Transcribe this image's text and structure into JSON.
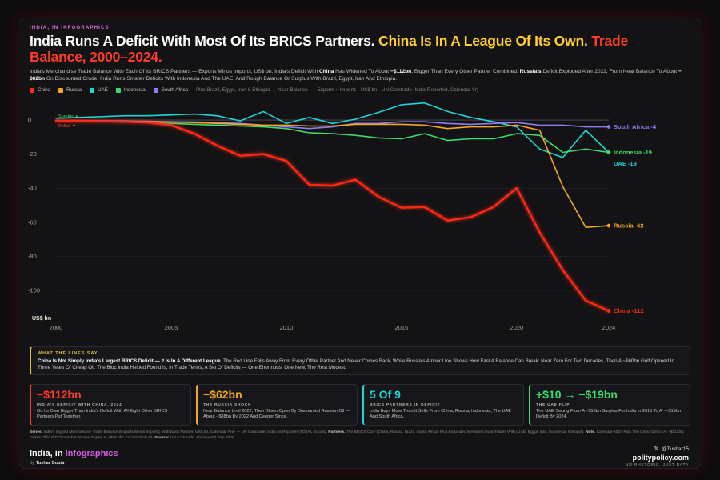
{
  "header": {
    "kicker": "INDIA, IN INFOGRAPHICS",
    "title_main": "India Runs A Deficit With Most Of Its BRICS Partners.",
    "title_yellow": "China Is In A League Of Its Own.",
    "title_red": "Trade Balance, 2000–2024.",
    "subtitle": {
      "p1": "India's Merchandise Trade Balance With Each Of Its BRICS Partners — Exports Minus Imports, US$ bn. India's Deficit With ",
      "b1": "China",
      "p2": " Has Widened To About ",
      "b2": "−$112bn",
      "p3": ", Bigger Than Every Other Partner Combined. ",
      "b3": "Russia's",
      "p4": " Deficit Exploded After 2022, From Near Balance To About ",
      "b4": "−$62bn",
      "p5": " On Discounted Crude. India Runs Smaller Deficits With Indonesia And The UAE, And Rough Balance Or Surplus With Brazil, Egypt, Iran And Ethiopia."
    }
  },
  "legend": {
    "items": [
      {
        "label": "China",
        "color": "#ff2a17"
      },
      {
        "label": "Russia",
        "color": "#f5a623"
      },
      {
        "label": "UAE",
        "color": "#1ed6d8"
      },
      {
        "label": "Indonesia",
        "color": "#3ddc6e"
      },
      {
        "label": "South Africa",
        "color": "#8f7cf2"
      }
    ],
    "note1": "Plus Brazil, Egypt, Iran & Ethiopia → Near Balance",
    "note2": "Exports − Imports · US$ bn · UN Comtrade (India-Reported, Calendar Yr)"
  },
  "chart_data": {
    "type": "line",
    "x": [
      2000,
      2001,
      2002,
      2003,
      2004,
      2005,
      2006,
      2007,
      2008,
      2009,
      2010,
      2011,
      2012,
      2013,
      2014,
      2015,
      2016,
      2017,
      2018,
      2019,
      2020,
      2021,
      2022,
      2023,
      2024
    ],
    "xticks": [
      "2000",
      "2005",
      "2010",
      "2015",
      "2020",
      "2024"
    ],
    "ylim": [
      -115,
      8
    ],
    "yticks": [
      "0",
      "-20",
      "-40",
      "-60",
      "-80",
      "-100"
    ],
    "ylabel": "US$ bn",
    "zero_labels": {
      "above": "Surplus ▲",
      "below": "Deficit ▼"
    },
    "grid": true,
    "series": [
      {
        "name": "UAE",
        "color": "#1ed6d8",
        "end_label": "UAE -19",
        "values": [
          1,
          1.5,
          2,
          2.5,
          2.5,
          3,
          3.5,
          2.5,
          -0.5,
          5,
          -2,
          1.5,
          -2,
          0.5,
          4.5,
          9,
          10,
          5,
          1.5,
          -1,
          -4,
          -17,
          -22,
          -6,
          -19
        ]
      },
      {
        "name": "Indonesia",
        "color": "#3ddc6e",
        "end_label": "Indonesia -19",
        "values": [
          -0.3,
          -0.5,
          -0.8,
          -1.2,
          -1.5,
          -2,
          -2.5,
          -3,
          -3.5,
          -4,
          -5,
          -7.5,
          -8,
          -9,
          -10.5,
          -11,
          -8,
          -12,
          -11,
          -11,
          -8,
          -9,
          -19,
          -17,
          -19
        ]
      },
      {
        "name": "South Africa",
        "color": "#8f7cf2",
        "end_label": "South Africa -4",
        "values": [
          -0.3,
          -0.4,
          -0.5,
          -0.6,
          -0.8,
          -1,
          -1.2,
          -1.5,
          -2,
          -3,
          -4,
          -5,
          -4,
          -2,
          -2,
          -1,
          -1,
          -2,
          -2.5,
          -2,
          -1.5,
          -3,
          -3,
          -4,
          -4
        ]
      },
      {
        "name": "Russia",
        "color": "#f5a623",
        "end_label": "Russia -62",
        "values": [
          -0.5,
          -0.6,
          -0.7,
          -0.8,
          -1,
          -1.2,
          -1.5,
          -2,
          -2.5,
          -3,
          -3,
          -3.5,
          -3.5,
          -2.5,
          -2.5,
          -2.5,
          -3,
          -5,
          -4,
          -4,
          -3,
          -6,
          -39,
          -63,
          -62
        ]
      },
      {
        "name": "China",
        "color": "#ff2a17",
        "end_label": "China -112",
        "values": [
          -0.5,
          -0.5,
          -0.8,
          -1,
          -1.5,
          -3,
          -8,
          -15,
          -21,
          -20,
          -24,
          -38,
          -38.5,
          -35,
          -45,
          -51.5,
          -51,
          -59,
          -57,
          -51,
          -40,
          -66,
          -88,
          -106,
          -112
        ]
      }
    ]
  },
  "callout": {
    "label": "WHAT THE LINES SAY",
    "bold": "China Is Not Simply India's Largest BRICS Deficit — It Is In A Different League.",
    "text": " The Red Line Falls Away From Every Other Partner And Never Comes Back, While Russia's Amber Line Shows How Fast A Balance Can Break: Near Zero For Two Decades, Then A ~$60bn Gulf Opened In Three Years Of Cheap Oil. The Bloc India Helped Found Is, In Trade Terms, A Set Of Deficits — One Enormous, One New, The Rest Modest."
  },
  "cards": [
    {
      "big": "−$112bn",
      "label": "INDIA'S DEFICIT WITH CHINA, 2024",
      "desc": "On Its Own Bigger Than India's Deficit With All Eight Other BRICS Partners Put Together.",
      "color": "#ff3b25"
    },
    {
      "big": "−$62bn",
      "label": "THE RUSSIA SHOCK",
      "desc": "Near Balance Until 2022, Then Blown Open By Discounted Russian Oil — About −$38bn By 2022 And Deeper Since.",
      "color": "#f5a623"
    },
    {
      "big": "5 Of 9",
      "label": "BRICS PARTNERS IN DEFICIT",
      "desc": "India Buys More Than It Sells From China, Russia, Indonesia, The UAE And South Africa.",
      "color": "#1ed6d8"
    },
    {
      "big": "+$10 → −$19bn",
      "label": "THE UAE FLIP",
      "desc": "The UAE Swung From A ~$10bn Surplus For India In 2015 To A ~−$19bn Deficit By 2024.",
      "color": "#3ddc6e"
    }
  ],
  "footer": {
    "series_label": "Series.",
    "series_text": " India's Signed Merchandise Trade Balance (Exports Minus Imports) With Each Partner, US$ bn, Calendar Year — UN Comtrade, India As Reporter (TOTAL Goods). ",
    "partners_label": "Partners.",
    "partners_text": " The BRICS Core (China, Russia, Brazil, South Africa) Plus Expanded Members India Trades With (UAE, Egypt, Iran, Indonesia, Ethiopia). ",
    "note_label": "Note.",
    "note_text": " Calendar-2024 Puts The China Deficit At ~$112bn; India's Official DGCI&S Fiscal-Year Figure Is ~$99.2bn For FY2024–25. ",
    "source_label": "Source:",
    "source_text": " UN Comtrade. Retrieved 9 Sep 2026."
  },
  "brand": {
    "name_a": "India, in ",
    "name_b": "Infographics",
    "by": "By ",
    "author": "Tushar Gupta",
    "x_glyph": "𝕏",
    "handle": "@Tushar15",
    "site": "politypolicy.com",
    "tagline": "NO RHETORIC, JUST DATA"
  }
}
